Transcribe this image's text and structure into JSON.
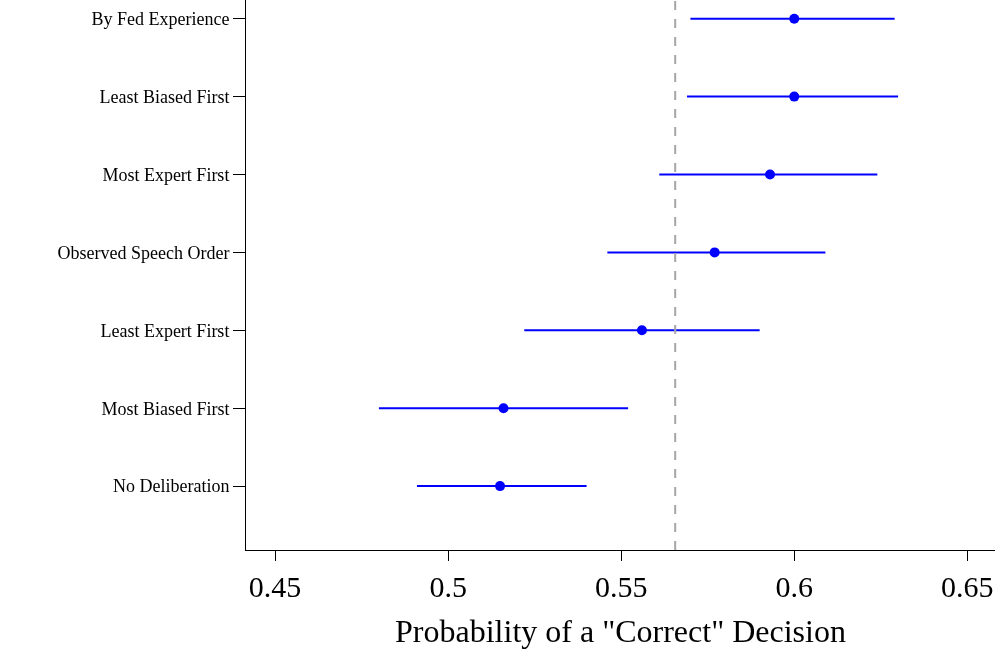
{
  "chart_data": {
    "type": "scatter",
    "orientation": "horizontal",
    "xlabel": "Probability of a \"Correct\" Decision",
    "categories": [
      "By Fed Experience",
      "Least Biased First",
      "Most Expert First",
      "Observed Speech Order",
      "Least Expert First",
      "Most Biased First",
      "No Deliberation"
    ],
    "series": [
      {
        "color": "#0000ff",
        "values": [
          0.6,
          0.6,
          0.593,
          0.577,
          0.556,
          0.516,
          0.515
        ],
        "errors": [
          [
            0.57,
            0.629
          ],
          [
            0.569,
            0.63
          ],
          [
            0.561,
            0.624
          ],
          [
            0.546,
            0.609
          ],
          [
            0.522,
            0.59
          ],
          [
            0.48,
            0.552
          ],
          [
            0.491,
            0.54
          ]
        ]
      }
    ],
    "xlim": [
      0.4416,
      0.658
    ],
    "xticks": [
      0.45,
      0.5,
      0.55,
      0.6,
      0.65
    ],
    "ref_lines": [
      {
        "axis": "x",
        "value": 0.5656,
        "color": "#a6a6a6",
        "line_style": "dashed"
      }
    ],
    "marker": "circle"
  }
}
